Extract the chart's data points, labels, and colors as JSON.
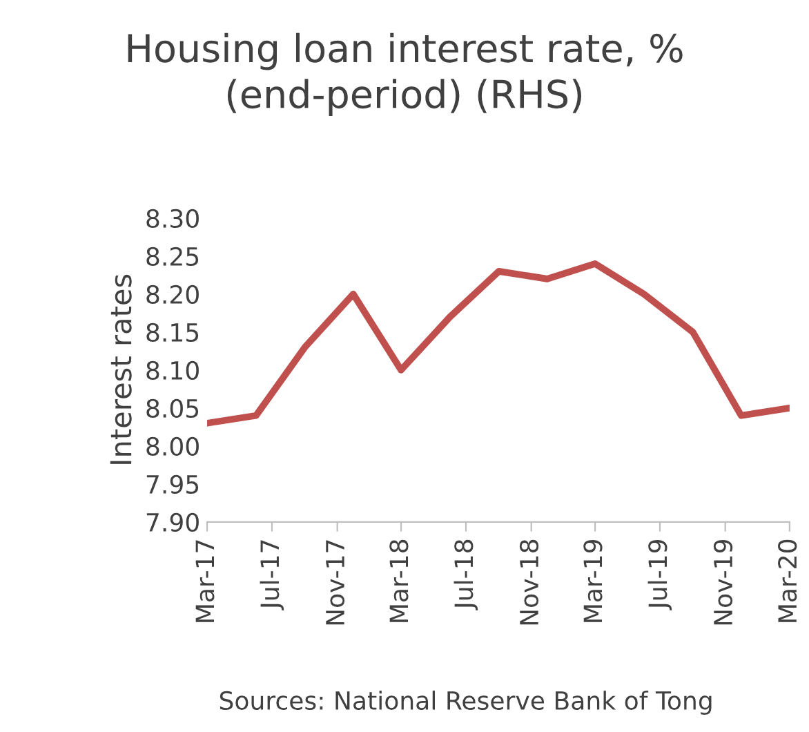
{
  "chart_data": {
    "type": "line",
    "title": "Housing loan interest rate, %\n(end-period) (RHS)",
    "ylabel": "Interest rates",
    "x": [
      "2017-03",
      "2017-06",
      "2017-09",
      "2017-12",
      "2018-03",
      "2018-06",
      "2018-09",
      "2018-12",
      "2019-03",
      "2019-06",
      "2019-09",
      "2019-12",
      "2020-03"
    ],
    "series": [
      {
        "color": "#c0504d",
        "values": [
          8.03,
          8.04,
          8.13,
          8.2,
          8.1,
          8.17,
          8.23,
          8.22,
          8.24,
          8.2,
          8.15,
          8.04,
          8.05
        ]
      }
    ],
    "xlim": [
      "2017-03",
      "2020-03"
    ],
    "xticks": [
      {
        "value": "2017-03",
        "label": "Mar-17"
      },
      {
        "value": "2017-07",
        "label": "Jul-17"
      },
      {
        "value": "2017-11",
        "label": "Nov-17"
      },
      {
        "value": "2018-03",
        "label": "Mar-18"
      },
      {
        "value": "2018-07",
        "label": "Jul-18"
      },
      {
        "value": "2018-11",
        "label": "Nov-18"
      },
      {
        "value": "2019-03",
        "label": "Mar-19"
      },
      {
        "value": "2019-07",
        "label": "Jul-19"
      },
      {
        "value": "2019-11",
        "label": "Nov-19"
      },
      {
        "value": "2020-03",
        "label": "Mar-20"
      }
    ],
    "ylim": [
      7.9,
      8.3
    ],
    "yticks": [
      {
        "value": 7.9,
        "label": "7.90"
      },
      {
        "value": 7.95,
        "label": "7.95"
      },
      {
        "value": 8.0,
        "label": "8.00"
      },
      {
        "value": 8.05,
        "label": "8.05"
      },
      {
        "value": 8.1,
        "label": "8.10"
      },
      {
        "value": 8.15,
        "label": "8.15"
      },
      {
        "value": 8.2,
        "label": "8.20"
      },
      {
        "value": 8.25,
        "label": "8.25"
      },
      {
        "value": 8.3,
        "label": "8.30"
      }
    ],
    "grid": false,
    "legend": false,
    "annotations": [
      "Sources: National Reserve Bank of Tong"
    ]
  }
}
